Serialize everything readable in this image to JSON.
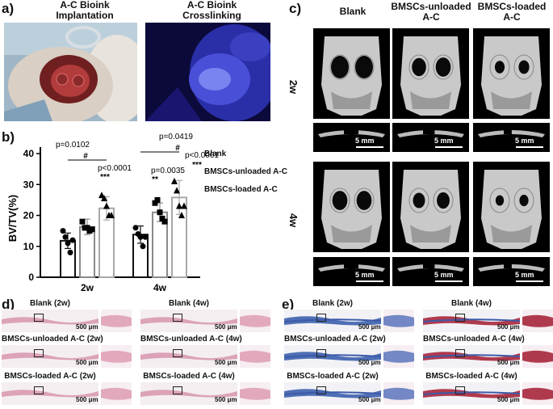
{
  "panel_a": {
    "label": "a)",
    "left_title": "A-C Bioink\nImplantation",
    "right_title": "A-C Bioink\nCrosslinking"
  },
  "panel_b": {
    "label": "b)"
  },
  "panel_c": {
    "label": "c)",
    "col_titles": [
      "Blank",
      "BMSCs-unloaded\nA-C",
      "BMSCs-loaded\nA-C"
    ],
    "row_labels": [
      "2w",
      "4w"
    ],
    "scale_bar": "5 mm"
  },
  "panel_d": {
    "label": "d)",
    "captions": [
      "Blank (2w)",
      "Blank (4w)",
      "BMSCs-unloaded A-C (2w)",
      "BMSCs-unloaded  A-C (4w)",
      "BMSCs-loaded  A-C (2w)",
      "BMSCs-loaded  A-C (4w)"
    ],
    "scale_bar": "500 μm"
  },
  "panel_e": {
    "label": "e)",
    "captions": [
      "Blank (2w)",
      "Blank (4w)",
      "BMSCs-unloaded  A-C (2w)",
      "BMSCs-unloaded  A-C (4w)",
      "BMSCs-loaded  A-C (2w)",
      "BMSCs-loaded  A-C (4w)"
    ],
    "scale_bar": "500 μm"
  },
  "chart_data": {
    "type": "bar",
    "ylabel": "BV/TV(%)",
    "ylim": [
      0,
      40
    ],
    "yticks": [
      0,
      10,
      20,
      30,
      40
    ],
    "categories": [
      "2w",
      "4w"
    ],
    "legend_placement": "right",
    "series": [
      {
        "name": "Blank",
        "marker": "circle",
        "values": [
          11.8,
          13.8
        ],
        "errors": [
          2.5,
          2.8
        ],
        "points": [
          [
            15,
            13,
            11,
            8,
            12
          ],
          [
            16,
            14,
            13,
            10,
            13
          ]
        ]
      },
      {
        "name": "BMSCs-unloaded A-C",
        "marker": "square",
        "values": [
          16.3,
          21.0
        ],
        "errors": [
          2.5,
          3.0
        ],
        "points": [
          [
            18,
            16,
            16,
            15,
            15.5
          ],
          [
            24,
            25,
            21,
            19,
            18
          ]
        ]
      },
      {
        "name": "BMSCs-loaded A-C",
        "marker": "triangle",
        "values": [
          22.3,
          25.8
        ],
        "errors": [
          3.8,
          5.5
        ],
        "points": [
          [
            26.5,
            25.5,
            23,
            20,
            20
          ],
          [
            31,
            28,
            23,
            20,
            23
          ]
        ]
      }
    ],
    "annotations": [
      {
        "text": "p=0.0102",
        "group": "2w"
      },
      {
        "text": "#",
        "group": "2w"
      },
      {
        "text": "p<0.0001",
        "group": "2w"
      },
      {
        "text": "***",
        "group": "2w"
      },
      {
        "text": "p=0.0419",
        "group": "4w"
      },
      {
        "text": "#",
        "group": "4w"
      },
      {
        "text": "p<0.0001",
        "group": "4w"
      },
      {
        "text": "***",
        "group": "4w"
      },
      {
        "text": "p=0.0035",
        "group": "4w"
      },
      {
        "text": "**",
        "group": "4w"
      }
    ]
  },
  "colors": {
    "blank": "#111111",
    "unloaded": "#8a8a8a",
    "loaded": "#a8a8a8",
    "uv_blue": "#2a2fa8",
    "he_pink": "#e9b7c8",
    "masson_blue": "#4f6fb5",
    "masson_red": "#b03a4d"
  }
}
